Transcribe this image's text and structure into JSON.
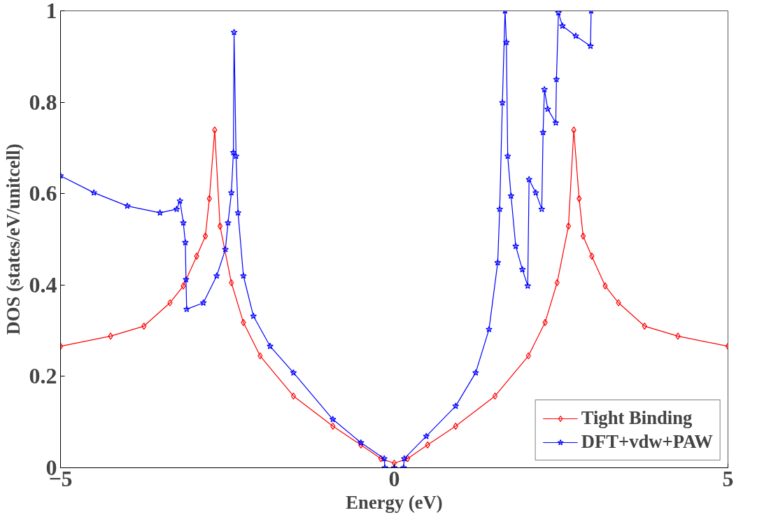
{
  "chart_data": {
    "type": "line",
    "xlabel": "Energy (eV)",
    "ylabel": "DOS (states/eV/unitcell)",
    "xlim": [
      -5,
      5
    ],
    "ylim": [
      0,
      1
    ],
    "xticks": [
      -5,
      0,
      5
    ],
    "yticks": [
      0,
      0.2,
      0.4,
      0.6,
      0.8,
      1
    ],
    "grid": false,
    "legend": "bottom right",
    "line_style": "solid",
    "series": [
      {
        "name": "Tight Binding",
        "color": "#ff0000",
        "marker": "diamond",
        "x": [
          -5,
          -4.25,
          -3.75,
          -3.36,
          -3.16,
          -2.96,
          -2.83,
          -2.77,
          -2.69,
          -2.61,
          -2.44,
          -2.26,
          -2.01,
          -1.51,
          -0.92,
          -0.5,
          -0.2,
          0,
          0.2,
          0.5,
          0.92,
          1.51,
          2.01,
          2.26,
          2.44,
          2.61,
          2.69,
          2.77,
          2.83,
          2.96,
          3.16,
          3.36,
          3.75,
          4.25,
          5
        ],
        "values": [
          0.266,
          0.288,
          0.31,
          0.361,
          0.398,
          0.463,
          0.507,
          0.589,
          0.739,
          0.529,
          0.405,
          0.318,
          0.245,
          0.157,
          0.091,
          0.05,
          0.02,
          0.01,
          0.02,
          0.05,
          0.091,
          0.157,
          0.245,
          0.318,
          0.405,
          0.529,
          0.739,
          0.589,
          0.507,
          0.463,
          0.398,
          0.361,
          0.31,
          0.288,
          0.266
        ]
      },
      {
        "name": "DFT+vdw+PAW",
        "color": "#0000ff",
        "marker": "star",
        "x": [
          -5,
          -4.5,
          -4,
          -3.51,
          -3.26,
          -3.21,
          -3.16,
          -3.13,
          -3.12,
          -3.11,
          -2.86,
          -2.66,
          -2.53,
          -2.49,
          -2.44,
          -2.41,
          -2.4,
          -2.37,
          -2.34,
          -2.26,
          -2.11,
          -1.86,
          -1.51,
          -0.92,
          -0.5,
          -0.15,
          -0.14,
          0,
          0.14,
          0.15,
          0.48,
          0.92,
          1.22,
          1.42,
          1.55,
          1.58,
          1.62,
          1.66,
          1.68,
          1.7,
          1.75,
          1.82,
          1.92,
          2.0,
          2.02,
          2.12,
          2.21,
          2.23,
          2.25,
          2.3,
          2.42,
          2.43,
          2.46,
          2.52,
          2.72,
          2.94,
          2.95
        ],
        "values": [
          0.639,
          0.602,
          0.573,
          0.558,
          0.566,
          0.584,
          0.536,
          0.493,
          0.412,
          0.347,
          0.361,
          0.42,
          0.478,
          0.536,
          0.602,
          0.69,
          0.953,
          0.682,
          0.558,
          0.42,
          0.332,
          0.266,
          0.208,
          0.106,
          0.055,
          0.02,
          0,
          0,
          0,
          0.02,
          0.069,
          0.135,
          0.208,
          0.303,
          0.449,
          0.566,
          0.799,
          1.0,
          0.931,
          0.682,
          0.595,
          0.485,
          0.434,
          0.398,
          0.631,
          0.602,
          0.566,
          0.734,
          0.828,
          0.785,
          0.755,
          0.85,
          0.996,
          0.967,
          0.945,
          0.923,
          1.0
        ]
      }
    ]
  }
}
